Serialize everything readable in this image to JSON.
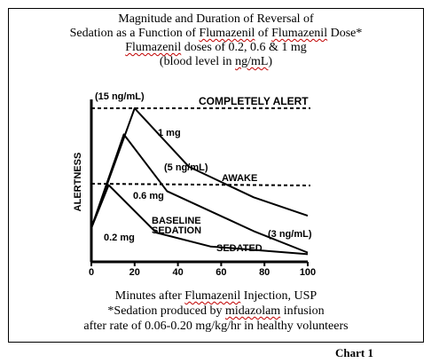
{
  "header": {
    "line1": "Magnitude and Duration of Reversal of",
    "line2_pre": "Sedation as a Function of ",
    "line2_w1": "Flumazenil",
    "line2_mid": " of ",
    "line2_w2": "Flumazenil",
    "line2_post": " Dose*",
    "line3_w": "Flumazenil",
    "line3_post": " doses of 0.2, 0.6 & 1 mg",
    "line4_pre": "(blood level in ",
    "line4_w": "ng/mL",
    "line4_post": ")"
  },
  "caption": {
    "line1_pre": "Minutes after ",
    "line1_w": "Flumazenil",
    "line1_post": " Injection, USP",
    "line2_pre": "*Sedation produced by ",
    "line2_w": "midazolam",
    "line2_post": " infusion",
    "line3": "after rate of 0.06-0.20 mg/kg/hr in healthy volunteers"
  },
  "footer": {
    "chart_label": "Chart 1"
  },
  "chart_data": {
    "type": "line",
    "ylabel": "ALERTNESS",
    "xlim": [
      0,
      100
    ],
    "x_ticks": [
      0,
      20,
      40,
      60,
      80,
      100
    ],
    "level_labels": {
      "completely_alert": "COMPLETELY ALERT",
      "awake": "AWAKE",
      "baseline": [
        "BASELINE",
        "SEDATION"
      ],
      "sedated": "SEDATED"
    },
    "annotations": {
      "peak_1mg": "(15 ng/mL)",
      "mid_1mg": "(5 ng/mL)",
      "end_06": "(3 ng/mL)"
    },
    "series": [
      {
        "name": "1 mg",
        "x": [
          0,
          20,
          45,
          75,
          100
        ],
        "y": [
          0.22,
          1.0,
          0.62,
          0.42,
          0.3
        ]
      },
      {
        "name": "0.6 mg",
        "x": [
          0,
          15,
          35,
          75,
          100
        ],
        "y": [
          0.22,
          0.83,
          0.46,
          0.2,
          0.06
        ]
      },
      {
        "name": "0.2 mg",
        "x": [
          0,
          8,
          30,
          55,
          100
        ],
        "y": [
          0.22,
          0.5,
          0.19,
          0.1,
          0.05
        ]
      }
    ]
  }
}
